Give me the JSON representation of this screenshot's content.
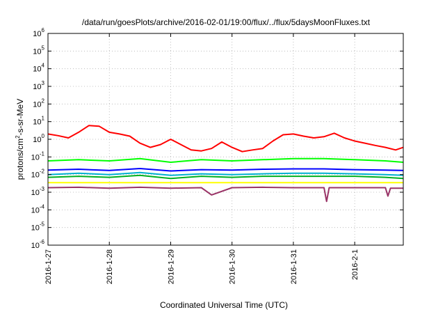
{
  "chart_data": {
    "type": "line",
    "title": "/data/run/goesPlots/archive/2016-02-01/19:00/flux/../flux/5daysMoonFluxes.txt",
    "xlabel": "Coordinated Universal Time (UTC)",
    "ylabel": {
      "base": "protons/cm",
      "sup": "2",
      "rest": "-s-sr-MeV"
    },
    "y_scale": "log",
    "ylim": [
      1e-06,
      1000000.0
    ],
    "y_ticks": [
      {
        "value": 1e-06,
        "base": "10",
        "exp": "-6"
      },
      {
        "value": 1e-05,
        "base": "10",
        "exp": "-5"
      },
      {
        "value": 0.0001,
        "base": "10",
        "exp": "-4"
      },
      {
        "value": 0.001,
        "base": "10",
        "exp": "-3"
      },
      {
        "value": 0.01,
        "base": "10",
        "exp": "-2"
      },
      {
        "value": 0.1,
        "base": "10",
        "exp": "-1"
      },
      {
        "value": 1,
        "base": "10",
        "exp": "0"
      },
      {
        "value": 10.0,
        "base": "10",
        "exp": "1"
      },
      {
        "value": 100.0,
        "base": "10",
        "exp": "2"
      },
      {
        "value": 1000.0,
        "base": "10",
        "exp": "3"
      },
      {
        "value": 10000.0,
        "base": "10",
        "exp": "4"
      },
      {
        "value": 100000.0,
        "base": "10",
        "exp": "5"
      },
      {
        "value": 1000000.0,
        "base": "10",
        "exp": "6"
      }
    ],
    "xlim": [
      "2016-01-27 00:00",
      "2016-02-01 19:00"
    ],
    "x_ticks": [
      "2016-1-27",
      "2016-1-28",
      "2016-1-29",
      "2016-1-30",
      "2016-1-31",
      "2016-2-1"
    ],
    "grid": true,
    "series": [
      {
        "color": "#ff0000",
        "x": [
          "2016-01-27 00:00",
          "2016-01-27 04:00",
          "2016-01-27 08:00",
          "2016-01-27 12:00",
          "2016-01-27 16:00",
          "2016-01-27 20:00",
          "2016-01-28 00:00",
          "2016-01-28 04:00",
          "2016-01-28 08:00",
          "2016-01-28 12:00",
          "2016-01-28 16:00",
          "2016-01-28 20:00",
          "2016-01-29 00:00",
          "2016-01-29 04:00",
          "2016-01-29 08:00",
          "2016-01-29 12:00",
          "2016-01-29 16:00",
          "2016-01-29 20:00",
          "2016-01-30 00:00",
          "2016-01-30 04:00",
          "2016-01-30 08:00",
          "2016-01-30 12:00",
          "2016-01-30 16:00",
          "2016-01-30 20:00",
          "2016-01-31 00:00",
          "2016-01-31 04:00",
          "2016-01-31 08:00",
          "2016-01-31 12:00",
          "2016-01-31 16:00",
          "2016-01-31 20:00",
          "2016-02-01 00:00",
          "2016-02-01 04:00",
          "2016-02-01 08:00",
          "2016-02-01 12:00",
          "2016-02-01 16:00",
          "2016-02-01 19:00"
        ],
        "values": [
          2,
          1.6,
          1.2,
          2.5,
          6,
          5.5,
          2.5,
          2,
          1.5,
          0.6,
          0.35,
          0.5,
          1,
          0.5,
          0.25,
          0.22,
          0.3,
          0.7,
          0.35,
          0.2,
          0.25,
          0.3,
          0.8,
          1.8,
          2,
          1.5,
          1.2,
          1.4,
          2.2,
          1.2,
          0.8,
          0.6,
          0.45,
          0.35,
          0.25,
          0.35
        ]
      },
      {
        "color": "#00ff00",
        "x": [
          "2016-01-27 00:00",
          "2016-01-27 12:00",
          "2016-01-28 00:00",
          "2016-01-28 12:00",
          "2016-01-29 00:00",
          "2016-01-29 12:00",
          "2016-01-30 00:00",
          "2016-01-30 12:00",
          "2016-01-31 00:00",
          "2016-01-31 12:00",
          "2016-02-01 00:00",
          "2016-02-01 12:00",
          "2016-02-01 19:00"
        ],
        "values": [
          0.06,
          0.07,
          0.06,
          0.08,
          0.05,
          0.07,
          0.06,
          0.07,
          0.08,
          0.08,
          0.07,
          0.06,
          0.05
        ]
      },
      {
        "color": "#00b0d0",
        "x": [
          "2016-01-27 00:00",
          "2016-01-27 12:00",
          "2016-01-28 00:00",
          "2016-01-28 12:00",
          "2016-01-29 00:00",
          "2016-01-29 12:00",
          "2016-01-30 00:00",
          "2016-01-30 12:00",
          "2016-01-31 00:00",
          "2016-01-31 12:00",
          "2016-02-01 00:00",
          "2016-02-01 12:00",
          "2016-02-01 19:00"
        ],
        "values": [
          0.01,
          0.012,
          0.01,
          0.013,
          0.009,
          0.011,
          0.01,
          0.011,
          0.012,
          0.012,
          0.011,
          0.01,
          0.009
        ]
      },
      {
        "color": "#0000ff",
        "x": [
          "2016-01-27 00:00",
          "2016-01-27 12:00",
          "2016-01-28 00:00",
          "2016-01-28 12:00",
          "2016-01-29 00:00",
          "2016-01-29 12:00",
          "2016-01-30 00:00",
          "2016-01-30 12:00",
          "2016-01-31 00:00",
          "2016-01-31 12:00",
          "2016-02-01 00:00",
          "2016-02-01 12:00",
          "2016-02-01 19:00"
        ],
        "values": [
          0.018,
          0.02,
          0.017,
          0.022,
          0.016,
          0.019,
          0.018,
          0.02,
          0.021,
          0.021,
          0.019,
          0.018,
          0.017
        ]
      },
      {
        "color": "#00b020",
        "x": [
          "2016-01-27 00:00",
          "2016-01-27 12:00",
          "2016-01-28 00:00",
          "2016-01-28 12:00",
          "2016-01-29 00:00",
          "2016-01-29 12:00",
          "2016-01-30 00:00",
          "2016-01-30 12:00",
          "2016-01-31 00:00",
          "2016-01-31 12:00",
          "2016-02-01 00:00",
          "2016-02-01 12:00",
          "2016-02-01 19:00"
        ],
        "values": [
          0.007,
          0.008,
          0.007,
          0.009,
          0.006,
          0.008,
          0.007,
          0.008,
          0.008,
          0.008,
          0.008,
          0.007,
          0.006
        ]
      },
      {
        "color": "#ffff00",
        "x": [
          "2016-01-27 00:00",
          "2016-02-01 19:00"
        ],
        "values": [
          0.0035,
          0.0035
        ]
      },
      {
        "color": "#993366",
        "x": [
          "2016-01-27 00:00",
          "2016-01-27 12:00",
          "2016-01-28 00:00",
          "2016-01-28 12:00",
          "2016-01-29 00:00",
          "2016-01-29 12:00",
          "2016-01-29 16:00",
          "2016-01-30 00:00",
          "2016-01-30 12:00",
          "2016-01-31 00:00",
          "2016-01-31 12:00",
          "2016-01-31 13:00",
          "2016-01-31 14:00",
          "2016-02-01 00:00",
          "2016-02-01 12:00",
          "2016-02-01 13:00",
          "2016-02-01 14:00",
          "2016-02-01 19:00"
        ],
        "values": [
          0.0018,
          0.0019,
          0.0017,
          0.0019,
          0.0017,
          0.0018,
          0.0007,
          0.0018,
          0.0019,
          0.0018,
          0.0018,
          0.0003,
          0.0018,
          0.0018,
          0.0018,
          0.0006,
          0.0017,
          0.0017
        ]
      }
    ]
  }
}
